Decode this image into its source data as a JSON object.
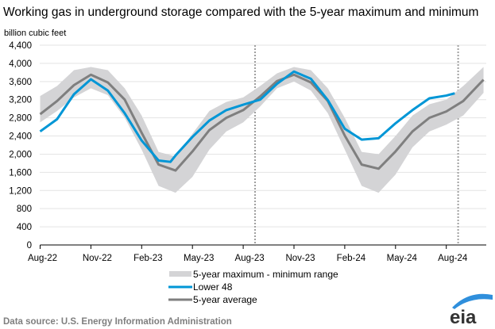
{
  "chart_data": {
    "type": "line",
    "title": "Working gas in underground  storage compared with the 5-year maximum and minimum",
    "ylabel": "billion cubic feet",
    "xlabel": "",
    "ylim": [
      0,
      4400
    ],
    "yticks": [
      0,
      400,
      800,
      1200,
      1600,
      2000,
      2400,
      2800,
      3200,
      3600,
      4000,
      4400
    ],
    "ytick_labels": [
      "0",
      "400",
      "800",
      "1,200",
      "1,600",
      "2,000",
      "2,400",
      "2,800",
      "3,200",
      "3,600",
      "4,000",
      "4,400"
    ],
    "x_unit": "months since Aug-22",
    "xlim": [
      0,
      26.4
    ],
    "xticks": [
      0,
      3,
      6,
      9,
      12,
      15,
      18,
      21,
      24
    ],
    "xtick_labels": [
      "Aug-22",
      "Nov-22",
      "Feb-23",
      "May-23",
      "Aug-23",
      "Nov-23",
      "Feb-24",
      "May-24",
      "Aug-24"
    ],
    "vertical_markers": [
      12.7,
      24.7
    ],
    "grid": "horizontal",
    "legend_placement": "bottom",
    "series": [
      {
        "name": "5-year maximum - minimum range",
        "kind": "band",
        "color": "#d4d4d6",
        "x": [
          0,
          1,
          2,
          3,
          4,
          5,
          6,
          7,
          8,
          9,
          10,
          11,
          12,
          13,
          14,
          15,
          16,
          17,
          18,
          19,
          20,
          21,
          22,
          23,
          24,
          25,
          26.2
        ],
        "max": [
          3280,
          3500,
          3850,
          3920,
          3850,
          3450,
          2850,
          2050,
          1950,
          2450,
          2950,
          3150,
          3250,
          3500,
          3780,
          3920,
          3850,
          3450,
          2800,
          2050,
          2000,
          2400,
          2850,
          3100,
          3200,
          3500,
          3920
        ],
        "min": [
          2700,
          2950,
          3250,
          3450,
          3300,
          2800,
          2100,
          1300,
          1150,
          1500,
          2100,
          2500,
          2700,
          3050,
          3450,
          3600,
          3400,
          2900,
          2100,
          1300,
          1150,
          1550,
          2150,
          2500,
          2650,
          2850,
          3350
        ]
      },
      {
        "name": "Lower 48",
        "kind": "line",
        "color": "#0096d6",
        "x": [
          0,
          1,
          2,
          3,
          4,
          5,
          6,
          7,
          7.7,
          8,
          9,
          10,
          11,
          12,
          13,
          14,
          15,
          16,
          17,
          18,
          19,
          20,
          21,
          22,
          23,
          24,
          24.5
        ],
        "values": [
          2500,
          2770,
          3320,
          3650,
          3400,
          2900,
          2300,
          1860,
          1830,
          1970,
          2380,
          2740,
          2970,
          3090,
          3200,
          3550,
          3820,
          3660,
          3190,
          2560,
          2320,
          2350,
          2680,
          2970,
          3230,
          3290,
          3340
        ]
      },
      {
        "name": "5-year average",
        "kind": "line",
        "color": "#7f7f7f",
        "x": [
          0,
          1,
          2,
          3,
          4,
          5,
          6,
          7,
          8,
          9,
          10,
          11,
          12,
          13,
          14,
          15,
          16,
          17,
          18,
          19,
          20,
          21,
          22,
          23,
          24,
          25,
          26.2
        ],
        "values": [
          2880,
          3170,
          3520,
          3750,
          3580,
          3200,
          2470,
          1770,
          1640,
          2060,
          2530,
          2800,
          2970,
          3270,
          3610,
          3750,
          3580,
          3170,
          2410,
          1770,
          1680,
          2060,
          2500,
          2800,
          2940,
          3170,
          3640
        ]
      }
    ]
  },
  "source": "Data source:  U.S. Energy Information Administration",
  "logo": "eia"
}
